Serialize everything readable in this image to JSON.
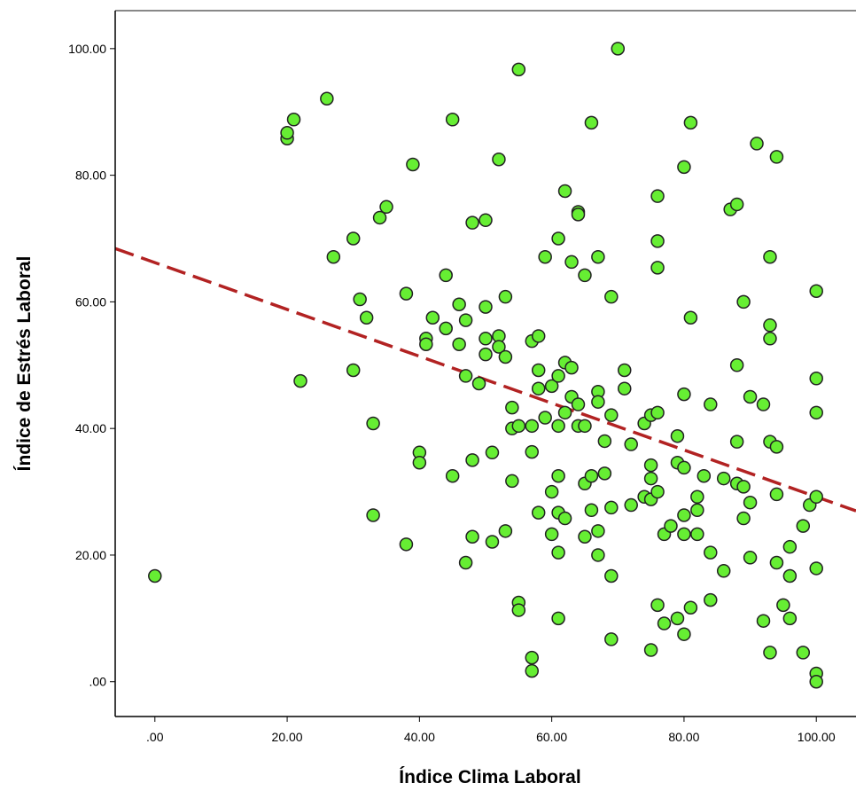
{
  "chart_data": {
    "type": "scatter",
    "title": "",
    "xlabel": "Índice Clima Laboral",
    "ylabel": "Índice de Estrés Laboral",
    "xlim": [
      -6,
      106
    ],
    "ylim": [
      -5.5,
      106
    ],
    "x_ticks": [
      0,
      20,
      40,
      60,
      80,
      100
    ],
    "x_tick_labels": [
      ".00",
      "20.00",
      "40.00",
      "60.00",
      "80.00",
      "100.00"
    ],
    "y_ticks": [
      0,
      20,
      40,
      60,
      80,
      100
    ],
    "y_tick_labels": [
      ".00",
      "20.00",
      "40.00",
      "60.00",
      "80.00",
      "100.00"
    ],
    "grid": false,
    "legend": "none",
    "marker_color": "#66ee33",
    "marker_edge_color": "#222222",
    "fit_line": {
      "style": "dashed",
      "color": "#b22222",
      "slope": -0.37,
      "intercept": 66.2
    },
    "points": [
      [
        0,
        16.7
      ],
      [
        20,
        85.8
      ],
      [
        20,
        86.7
      ],
      [
        21,
        88.8
      ],
      [
        22,
        47.5
      ],
      [
        26,
        92.1
      ],
      [
        27,
        67.1
      ],
      [
        30,
        70
      ],
      [
        30,
        49.2
      ],
      [
        31,
        60.4
      ],
      [
        32,
        57.5
      ],
      [
        33,
        40.8
      ],
      [
        33,
        26.3
      ],
      [
        34,
        73.3
      ],
      [
        35,
        75
      ],
      [
        38,
        61.3
      ],
      [
        38,
        21.7
      ],
      [
        39,
        81.7
      ],
      [
        40,
        36.2
      ],
      [
        40,
        34.6
      ],
      [
        41,
        54.2
      ],
      [
        41,
        53.3
      ],
      [
        42,
        57.5
      ],
      [
        44,
        64.2
      ],
      [
        44,
        55.8
      ],
      [
        45,
        88.8
      ],
      [
        45,
        32.5
      ],
      [
        46,
        59.6
      ],
      [
        46,
        53.3
      ],
      [
        47,
        57.1
      ],
      [
        47,
        48.3
      ],
      [
        47,
        18.8
      ],
      [
        48,
        72.5
      ],
      [
        48,
        35
      ],
      [
        48,
        22.9
      ],
      [
        49,
        47.1
      ],
      [
        50,
        72.9
      ],
      [
        50,
        59.2
      ],
      [
        50,
        54.2
      ],
      [
        50,
        51.7
      ],
      [
        51,
        36.2
      ],
      [
        51,
        22.1
      ],
      [
        52,
        82.5
      ],
      [
        52,
        54.6
      ],
      [
        52,
        52.9
      ],
      [
        53,
        60.8
      ],
      [
        53,
        51.3
      ],
      [
        53,
        23.8
      ],
      [
        54,
        43.3
      ],
      [
        54,
        40
      ],
      [
        54,
        31.7
      ],
      [
        55,
        96.7
      ],
      [
        55,
        40.4
      ],
      [
        55,
        12.5
      ],
      [
        55,
        11.3
      ],
      [
        57,
        53.8
      ],
      [
        57,
        40.4
      ],
      [
        57,
        36.3
      ],
      [
        57,
        3.8
      ],
      [
        57,
        1.7
      ],
      [
        58,
        54.6
      ],
      [
        58,
        49.2
      ],
      [
        58,
        46.3
      ],
      [
        58,
        26.7
      ],
      [
        59,
        67.1
      ],
      [
        59,
        41.7
      ],
      [
        60,
        46.7
      ],
      [
        60,
        30
      ],
      [
        60,
        23.3
      ],
      [
        61,
        70
      ],
      [
        61,
        48.3
      ],
      [
        61,
        40.4
      ],
      [
        61,
        32.5
      ],
      [
        61,
        26.7
      ],
      [
        61,
        20.4
      ],
      [
        61,
        10
      ],
      [
        62,
        77.5
      ],
      [
        62,
        50.4
      ],
      [
        62,
        42.5
      ],
      [
        62,
        25.8
      ],
      [
        63,
        66.3
      ],
      [
        63,
        49.6
      ],
      [
        63,
        45
      ],
      [
        64,
        74.2
      ],
      [
        64,
        73.8
      ],
      [
        64,
        43.8
      ],
      [
        64,
        40.4
      ],
      [
        65,
        64.2
      ],
      [
        65,
        40.4
      ],
      [
        65,
        31.3
      ],
      [
        65,
        22.9
      ],
      [
        66,
        88.3
      ],
      [
        66,
        32.5
      ],
      [
        66,
        27.1
      ],
      [
        67,
        67.1
      ],
      [
        67,
        45.8
      ],
      [
        67,
        44.2
      ],
      [
        67,
        23.8
      ],
      [
        67,
        20
      ],
      [
        68,
        38
      ],
      [
        68,
        32.9
      ],
      [
        69,
        60.8
      ],
      [
        69,
        42.1
      ],
      [
        69,
        27.5
      ],
      [
        69,
        16.7
      ],
      [
        69,
        6.7
      ],
      [
        70,
        100
      ],
      [
        71,
        49.2
      ],
      [
        71,
        46.3
      ],
      [
        72,
        37.5
      ],
      [
        72,
        27.9
      ],
      [
        74,
        40.8
      ],
      [
        74,
        29.2
      ],
      [
        75,
        42.1
      ],
      [
        75,
        34.2
      ],
      [
        75,
        32.1
      ],
      [
        75,
        28.8
      ],
      [
        75,
        5
      ],
      [
        76,
        76.7
      ],
      [
        76,
        69.6
      ],
      [
        76,
        65.4
      ],
      [
        76,
        42.5
      ],
      [
        76,
        30
      ],
      [
        76,
        12.1
      ],
      [
        77,
        23.3
      ],
      [
        77,
        9.2
      ],
      [
        78,
        24.6
      ],
      [
        79,
        38.8
      ],
      [
        79,
        34.6
      ],
      [
        79,
        10
      ],
      [
        80,
        81.3
      ],
      [
        80,
        45.4
      ],
      [
        80,
        33.8
      ],
      [
        80,
        26.3
      ],
      [
        80,
        23.3
      ],
      [
        80,
        7.5
      ],
      [
        81,
        88.3
      ],
      [
        81,
        57.5
      ],
      [
        81,
        11.7
      ],
      [
        82,
        29.2
      ],
      [
        82,
        27.1
      ],
      [
        82,
        23.3
      ],
      [
        83,
        32.5
      ],
      [
        84,
        43.8
      ],
      [
        84,
        20.4
      ],
      [
        84,
        12.9
      ],
      [
        86,
        32.1
      ],
      [
        86,
        17.5
      ],
      [
        87,
        74.6
      ],
      [
        88,
        75.4
      ],
      [
        88,
        50
      ],
      [
        88,
        37.9
      ],
      [
        88,
        31.3
      ],
      [
        89,
        60
      ],
      [
        89,
        30.8
      ],
      [
        89,
        25.8
      ],
      [
        90,
        45
      ],
      [
        90,
        28.3
      ],
      [
        90,
        19.6
      ],
      [
        91,
        85
      ],
      [
        92,
        43.8
      ],
      [
        92,
        9.6
      ],
      [
        93,
        67.1
      ],
      [
        93,
        56.3
      ],
      [
        93,
        54.2
      ],
      [
        93,
        37.9
      ],
      [
        93,
        4.6
      ],
      [
        94,
        82.9
      ],
      [
        94,
        37.1
      ],
      [
        94,
        29.6
      ],
      [
        94,
        18.8
      ],
      [
        95,
        12.1
      ],
      [
        96,
        21.3
      ],
      [
        96,
        16.7
      ],
      [
        96,
        10
      ],
      [
        98,
        24.6
      ],
      [
        98,
        4.6
      ],
      [
        99,
        27.9
      ],
      [
        100,
        61.7
      ],
      [
        100,
        47.9
      ],
      [
        100,
        42.5
      ],
      [
        100,
        29.2
      ],
      [
        100,
        17.9
      ],
      [
        100,
        1.3
      ],
      [
        100,
        0
      ]
    ]
  }
}
